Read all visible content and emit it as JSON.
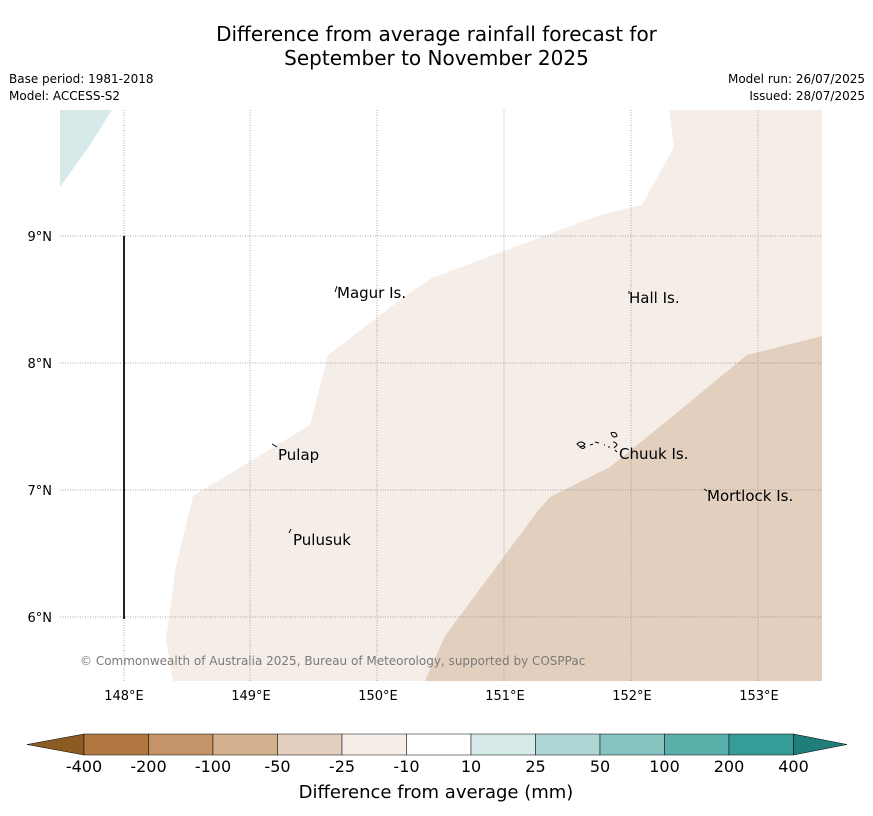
{
  "title_line1": "Difference from average rainfall forecast for",
  "title_line2": "September to November 2025",
  "base_period": "Base period: 1981-2018",
  "model": "Model: ACCESS-S2",
  "model_run": "Model run: 26/07/2025",
  "issued": "Issued: 28/07/2025",
  "lat_labels": [
    "9°N",
    "8°N",
    "7°N",
    "6°N"
  ],
  "lon_labels": [
    "148°E",
    "149°E",
    "150°E",
    "151°E",
    "152°E",
    "153°E"
  ],
  "places": {
    "magur": "Magur Is.",
    "hall": "Hall Is.",
    "pulap": "Pulap",
    "chuuk": "Chuuk Is.",
    "pulusuk": "Pulusuk",
    "mortlock": "Mortlock Is."
  },
  "credit": "© Commonwealth of Australia 2025, Bureau of Meteorology, supported by COSPPac",
  "colorbar": {
    "title": "Difference from average (mm)",
    "labels": [
      "-400",
      "-200",
      "-100",
      "-50",
      "-25",
      "-10",
      "10",
      "25",
      "50",
      "100",
      "200",
      "400"
    ],
    "colors": [
      "#8c5b22",
      "#b07840",
      "#c49468",
      "#d3b08e",
      "#e2cfbd",
      "#f5ede8",
      "#ffffff",
      "#d6eae9",
      "#add6d4",
      "#85c3c0",
      "#5aafab",
      "#369c98",
      "#1f7e7a"
    ]
  },
  "fill_colors": {
    "light_brown": "#f5ede8",
    "brown": "#e2cfbd",
    "light_teal": "#d6eae9"
  }
}
